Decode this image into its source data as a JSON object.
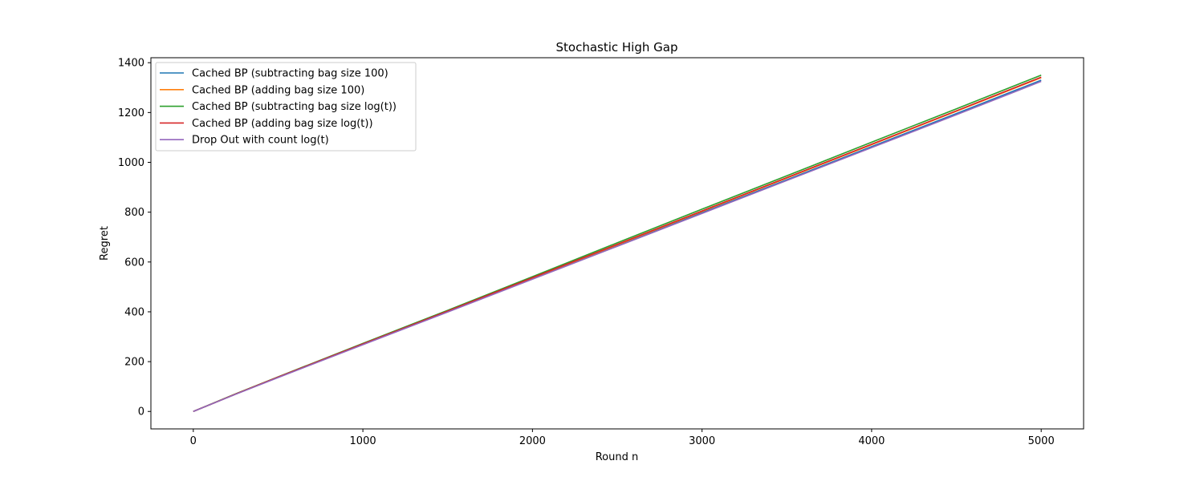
{
  "chart_data": {
    "type": "line",
    "title": "Stochastic High Gap",
    "xlabel": "Round n",
    "ylabel": "Regret",
    "xlim": [
      -250,
      5250
    ],
    "ylim": [
      -70,
      1420
    ],
    "xticks": [
      0,
      1000,
      2000,
      3000,
      4000,
      5000
    ],
    "yticks": [
      0,
      200,
      400,
      600,
      800,
      1000,
      1200,
      1400
    ],
    "grid": false,
    "legend_position": "upper-left",
    "x": [
      0,
      250,
      500,
      1000,
      1500,
      2000,
      2500,
      3000,
      3500,
      4000,
      4500,
      5000
    ],
    "series": [
      {
        "name": "Cached BP (subtracting bag size 100)",
        "color": "#1f77b4",
        "values": [
          0,
          70,
          137,
          269,
          400,
          533,
          665,
          798,
          930,
          1063,
          1196,
          1330
        ]
      },
      {
        "name": "Cached BP (adding bag size 100)",
        "color": "#ff7f0e",
        "values": [
          0,
          70,
          138,
          270,
          402,
          536,
          669,
          803,
          937,
          1071,
          1205,
          1340
        ]
      },
      {
        "name": "Cached BP (subtracting bag size log(t))",
        "color": "#2ca02c",
        "values": [
          0,
          71,
          139,
          273,
          406,
          541,
          677,
          812,
          946,
          1081,
          1215,
          1350
        ]
      },
      {
        "name": "Cached BP (adding bag size log(t))",
        "color": "#d62728",
        "values": [
          0,
          70,
          138,
          271,
          403,
          537,
          671,
          805,
          939,
          1073,
          1207,
          1342
        ]
      },
      {
        "name": "Drop Out with count log(t)",
        "color": "#9467bd",
        "values": [
          0,
          69,
          136,
          268,
          399,
          531,
          663,
          795,
          927,
          1059,
          1191,
          1325
        ]
      }
    ]
  }
}
